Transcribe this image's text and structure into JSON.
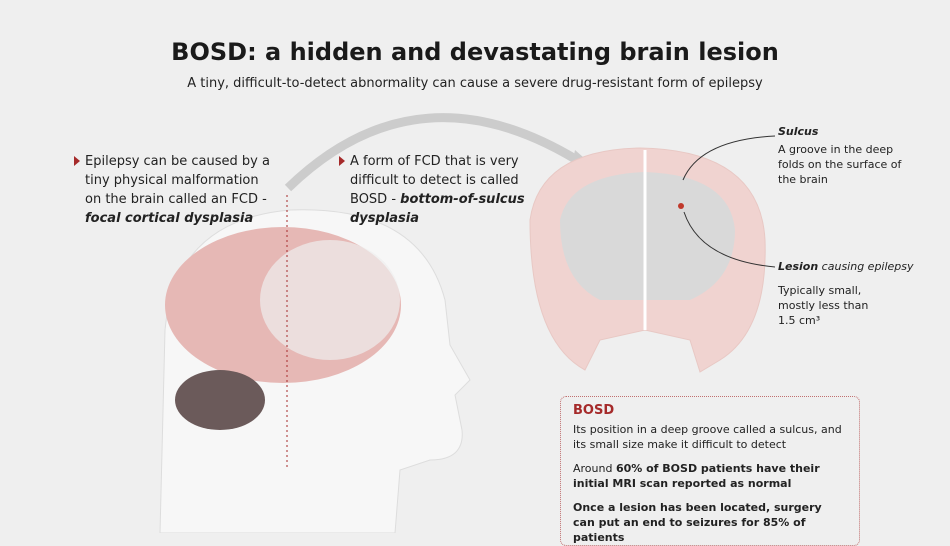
{
  "title": "BOSD: a hidden and devastating brain lesion",
  "subtitle": "A tiny, difficult-to-detect abnormality can cause a severe drug-resistant form of epilepsy",
  "note1": {
    "text": "Epilepsy can be caused by a tiny physical malformation on the brain called an FCD -",
    "italic": "focal cortical dysplasia"
  },
  "note2": {
    "text": "A form of FCD that is very difficult to detect is called BOSD -",
    "italic": "bottom-of-sulcus dysplasia"
  },
  "sulcus": {
    "heading": "Sulcus",
    "text": "A groove in the deep folds on the surface of the brain"
  },
  "lesion": {
    "heading_bold": "Lesion",
    "heading_rest": " causing epilepsy",
    "text1": "Typically small,",
    "text2": "mostly less than",
    "text3": "1.5 cm³"
  },
  "box": {
    "title": "BOSD",
    "p1": "Its position in a deep groove called a sulcus, and its small size make it difficult to detect",
    "p2_pre": "Around ",
    "p2_bold": "60% of  BOSD patients have their initial MRI scan reported as normal",
    "p3": "Once a lesion has been located, surgery can put an end to seizures for 85% of patients"
  },
  "colors": {
    "accent": "#a52a2a",
    "lesion": "#c0392b"
  }
}
